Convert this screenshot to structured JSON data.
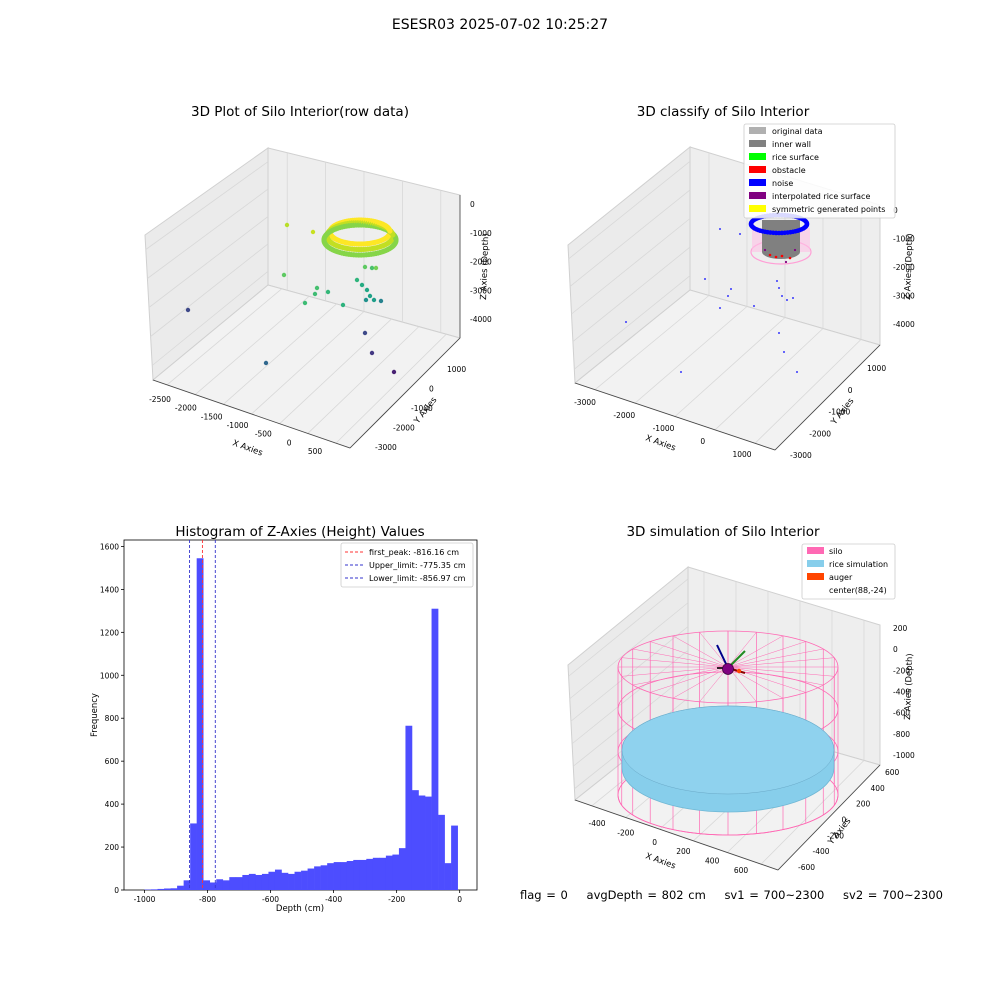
{
  "suptitle": "ESESR03 2025-07-02 10:25:27",
  "colors": {
    "hist_bar": "#4d4dff",
    "peak_line": "#ff3333",
    "limit_line": "#3333cc",
    "silo": "#ff69b4",
    "rice": "#87ceeb",
    "auger": "#ff4500",
    "rice_surface": "#00ff00",
    "obstacle": "#ff0000",
    "noise": "#0000ff",
    "inner_wall": "#808080",
    "interpolated": "#800080",
    "symmetric": "#ffff00",
    "original": "#b0b0b0"
  },
  "panels": {
    "raw": {
      "title": "3D Plot of Silo Interior(row data)",
      "x_label": "X Axies",
      "y_label": "Y Axies",
      "z_label": "Z Axies (Depth)",
      "x_ticks": [
        "-2500",
        "-2000",
        "-1500",
        "-1000",
        "-500",
        "0",
        "500"
      ],
      "y_ticks": [
        "1000",
        "0",
        "-1000",
        "-2000",
        "-3000"
      ],
      "z_ticks": [
        "0",
        "-1000",
        "-2000",
        "-3000",
        "-4000"
      ]
    },
    "classify": {
      "title": "3D classify of Silo Interior",
      "x_label": "X Axies",
      "y_label": "Y Axies",
      "z_label": "Z Axies (Depth)",
      "x_ticks": [
        "-3000",
        "-2000",
        "-1000",
        "0",
        "1000"
      ],
      "y_ticks": [
        "1000",
        "0",
        "-1000",
        "-2000",
        "-3000"
      ],
      "z_ticks": [
        "0",
        "-1000",
        "-2000",
        "-3000",
        "-4000"
      ],
      "legend": [
        {
          "label": "original data",
          "color": "#b0b0b0"
        },
        {
          "label": "inner wall",
          "color": "#808080"
        },
        {
          "label": "rice surface",
          "color": "#00ff00"
        },
        {
          "label": "obstacle",
          "color": "#ff0000"
        },
        {
          "label": "noise",
          "color": "#0000ff"
        },
        {
          "label": "interpolated rice surface",
          "color": "#800080"
        },
        {
          "label": "symmetric generated points",
          "color": "#ffff00"
        }
      ]
    },
    "simulation": {
      "title": "3D simulation of Silo Interior",
      "x_label": "X Axies",
      "y_label": "Y Axies",
      "z_label": "Z Axies (Depth)",
      "x_ticks": [
        "-400",
        "-200",
        "0",
        "200",
        "400",
        "600"
      ],
      "y_ticks": [
        "600",
        "400",
        "200",
        "0",
        "-200",
        "-400",
        "-600"
      ],
      "z_ticks": [
        "200",
        "0",
        "-200",
        "-400",
        "-600",
        "-800",
        "-1000"
      ],
      "legend": [
        {
          "label": "silo",
          "color": "#ff69b4"
        },
        {
          "label": "rice simulation",
          "color": "#87ceeb"
        },
        {
          "label": "auger",
          "color": "#ff4500"
        },
        {
          "label": "center(88,-24)",
          "color": ""
        }
      ]
    }
  },
  "status": {
    "flag": "flag = 0",
    "avg_depth": "avgDepth = 802 cm",
    "sv1": "sv1 = 700~2300",
    "sv2": "sv2 = 700~2300"
  },
  "chart_data": [
    {
      "type": "histogram",
      "title": "Histogram of Z-Axies (Height) Values",
      "xlabel": "Depth (cm)",
      "ylabel": "Frequency",
      "xlim": [
        -1065,
        55
      ],
      "ylim": [
        0,
        1630
      ],
      "x_ticks": [
        -1000,
        -800,
        -600,
        -400,
        -200,
        0
      ],
      "y_ticks": [
        0,
        200,
        400,
        600,
        800,
        1000,
        1200,
        1400,
        1600
      ],
      "bin_start": -1000,
      "bin_width": 20.7,
      "values": [
        2,
        3,
        5,
        7,
        8,
        20,
        45,
        310,
        1545,
        45,
        35,
        50,
        45,
        60,
        60,
        70,
        75,
        70,
        75,
        85,
        95,
        80,
        75,
        85,
        90,
        100,
        110,
        115,
        125,
        130,
        130,
        135,
        140,
        140,
        145,
        150,
        150,
        160,
        165,
        195,
        765,
        465,
        440,
        435,
        1310,
        350,
        125,
        300
      ],
      "vlines": [
        {
          "label": "first_peak: -816.16 cm",
          "x": -816.16,
          "style": "peak"
        },
        {
          "label": "Upper_limit: -775.35 cm",
          "x": -775.35,
          "style": "limit"
        },
        {
          "label": "Lower_limit: -856.97 cm",
          "x": -856.97,
          "style": "limit"
        }
      ],
      "legend_position": "top-right"
    }
  ]
}
